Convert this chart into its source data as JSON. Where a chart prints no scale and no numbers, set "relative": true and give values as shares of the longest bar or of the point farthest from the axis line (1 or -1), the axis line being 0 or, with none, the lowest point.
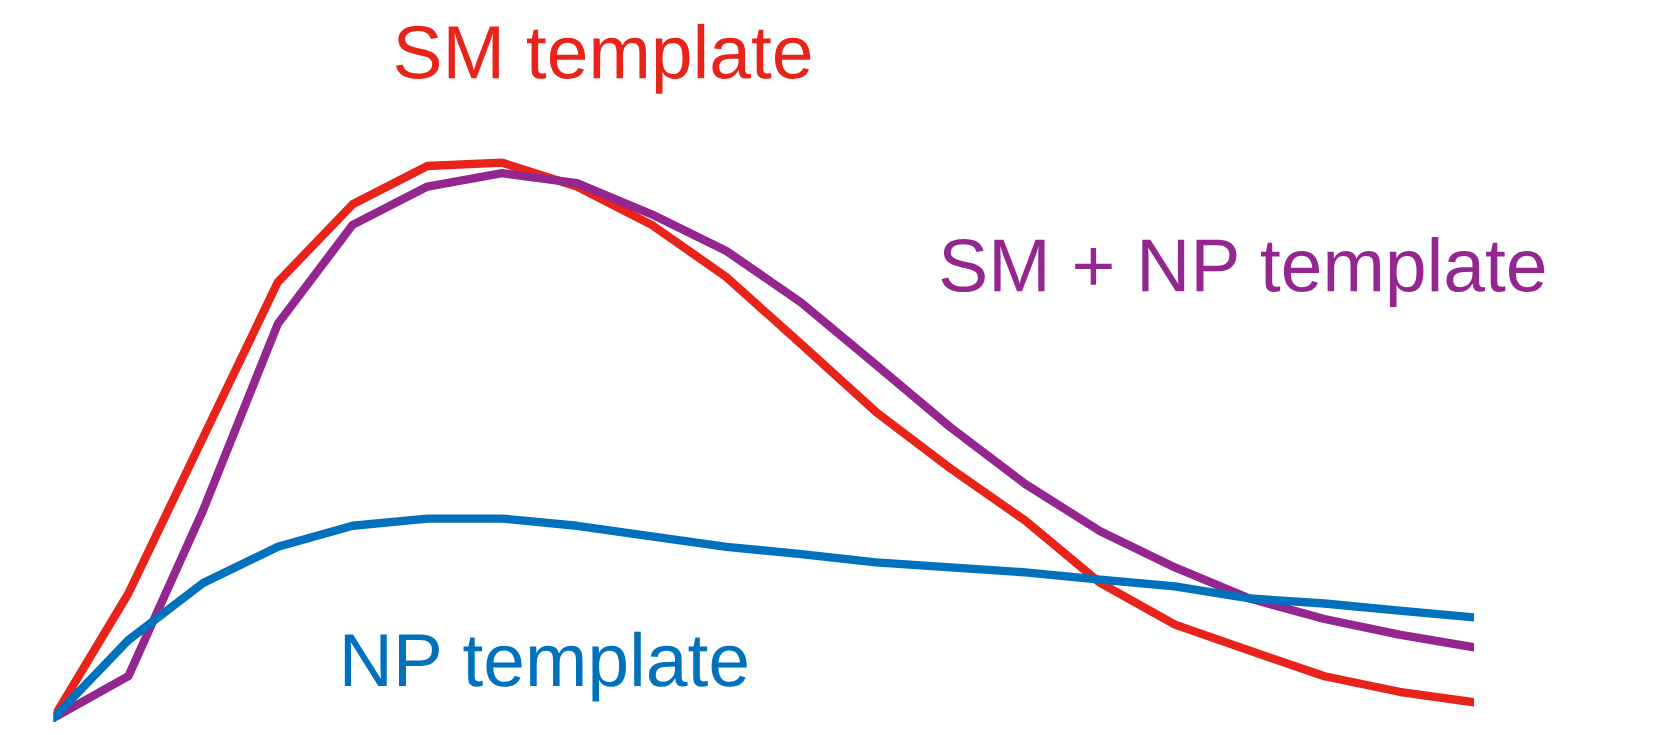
{
  "chart_data": {
    "type": "line",
    "relative": true,
    "legend": false,
    "marker": "none",
    "line_style": "solid",
    "categories": [
      null,
      null,
      null,
      null,
      null,
      null,
      null,
      null,
      null,
      null,
      null,
      null,
      null,
      null,
      null,
      null,
      null,
      null,
      null,
      null
    ],
    "series": [
      {
        "name": "SM template",
        "color": "#e8241a",
        "values": [
          0,
          0.224,
          0.505,
          0.785,
          0.925,
          0.994,
          1,
          0.957,
          0.888,
          0.794,
          0.673,
          0.551,
          0.449,
          0.355,
          0.243,
          0.168,
          0.121,
          0.075,
          0.047,
          0.028
        ]
      },
      {
        "name": "SM + NP template",
        "color": "#93278f",
        "values": [
          0,
          0.075,
          0.374,
          0.71,
          0.888,
          0.957,
          0.981,
          0.963,
          0.907,
          0.841,
          0.748,
          0.636,
          0.523,
          0.421,
          0.336,
          0.271,
          0.215,
          0.178,
          0.15,
          0.127
        ]
      },
      {
        "name": "NP template",
        "color": "#0071bc",
        "values": [
          0,
          0.14,
          0.243,
          0.308,
          0.346,
          0.359,
          0.359,
          0.346,
          0.327,
          0.308,
          0.295,
          0.28,
          0.271,
          0.262,
          0.249,
          0.237,
          0.215,
          0.206,
          0.193,
          0.181
        ]
      }
    ]
  }
}
